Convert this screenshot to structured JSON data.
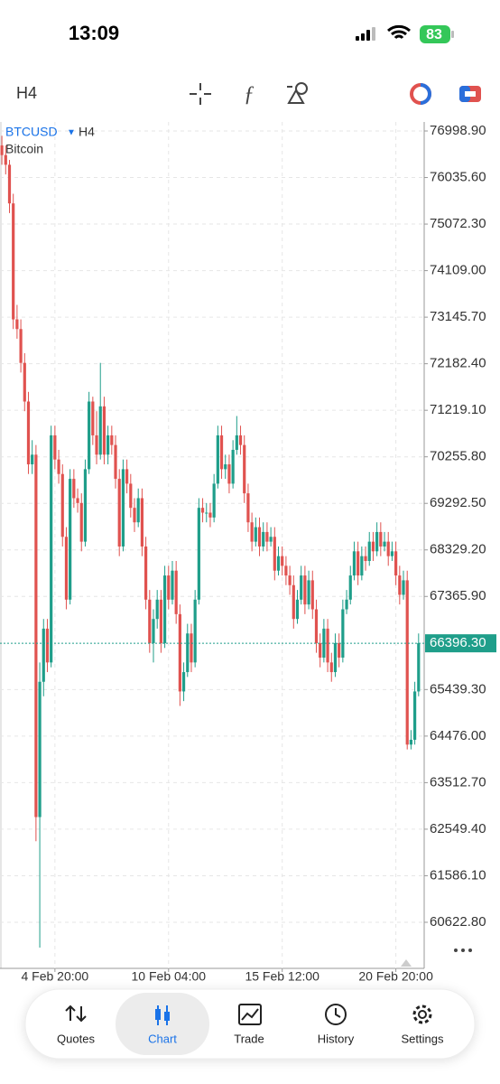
{
  "status": {
    "time": "13:09",
    "battery": "83"
  },
  "toolbar": {
    "timeframe": "H4"
  },
  "chart_data": {
    "type": "candlestick",
    "symbol": "BTCUSD",
    "timeframe": "H4",
    "description": "Bitcoin",
    "up_color": "#1f9e8a",
    "down_color": "#e0524f",
    "grid": true,
    "ylim": [
      59668.9,
      77185.9
    ],
    "yticks": [
      {
        "value": 76998.9,
        "label": "76998.90"
      },
      {
        "value": 76035.6,
        "label": "76035.60"
      },
      {
        "value": 75072.3,
        "label": "75072.30"
      },
      {
        "value": 74109,
        "label": "74109.00"
      },
      {
        "value": 73145.7,
        "label": "73145.70"
      },
      {
        "value": 72182.4,
        "label": "72182.40"
      },
      {
        "value": 71219.1,
        "label": "71219.10"
      },
      {
        "value": 70255.8,
        "label": "70255.80"
      },
      {
        "value": 69292.5,
        "label": "69292.50"
      },
      {
        "value": 68329.2,
        "label": "68329.20"
      },
      {
        "value": 67365.9,
        "label": "67365.90"
      },
      {
        "value": 65439.3,
        "label": "65439.30"
      },
      {
        "value": 64476,
        "label": "64476.00"
      },
      {
        "value": 63512.7,
        "label": "63512.70"
      },
      {
        "value": 62549.4,
        "label": "62549.40"
      },
      {
        "value": 61586.1,
        "label": "61586.10"
      },
      {
        "value": 60622.8,
        "label": "60622.80"
      }
    ],
    "xlim": [
      -0.5,
      111
    ],
    "xticks": [
      {
        "value": 14,
        "label": "4 Feb 20:00"
      },
      {
        "value": 44,
        "label": "10 Feb 04:00"
      },
      {
        "value": 74,
        "label": "15 Feb 12:00"
      },
      {
        "value": 104,
        "label": "20 Feb 20:00"
      }
    ],
    "current_price": {
      "value": 66396.3,
      "label": "66396.30"
    },
    "ohlc": [
      [
        76700,
        76900,
        76300,
        76500
      ],
      [
        76500,
        76700,
        76100,
        76300
      ],
      [
        76300,
        76400,
        75300,
        75500
      ],
      [
        75500,
        75700,
        72900,
        73100
      ],
      [
        73100,
        73400,
        72700,
        72900
      ],
      [
        72900,
        73100,
        72000,
        72200
      ],
      [
        72200,
        72400,
        71200,
        71400
      ],
      [
        71400,
        71600,
        69900,
        70100
      ],
      [
        70100,
        70600,
        69900,
        70300
      ],
      [
        70300,
        70500,
        62300,
        62800
      ],
      [
        62800,
        66000,
        60100,
        65600
      ],
      [
        65600,
        66900,
        65300,
        66700
      ],
      [
        66700,
        66900,
        65800,
        66000
      ],
      [
        66000,
        70900,
        65900,
        70700
      ],
      [
        70700,
        70900,
        70000,
        70200
      ],
      [
        70200,
        70400,
        69700,
        69900
      ],
      [
        69900,
        70100,
        68400,
        68600
      ],
      [
        68600,
        68800,
        67100,
        67300
      ],
      [
        67300,
        70000,
        67200,
        69800
      ],
      [
        69800,
        70000,
        69200,
        69400
      ],
      [
        69400,
        69600,
        69100,
        69300
      ],
      [
        69300,
        69500,
        68300,
        68500
      ],
      [
        68500,
        70200,
        68400,
        70000
      ],
      [
        70000,
        71600,
        69900,
        71400
      ],
      [
        71400,
        71500,
        70500,
        70700
      ],
      [
        70700,
        71200,
        70100,
        70300
      ],
      [
        70300,
        72200,
        70200,
        71300
      ],
      [
        71300,
        71500,
        70100,
        70300
      ],
      [
        70300,
        70900,
        70100,
        70700
      ],
      [
        70700,
        70900,
        70300,
        70500
      ],
      [
        70500,
        70700,
        69600,
        69800
      ],
      [
        69800,
        70000,
        68200,
        68400
      ],
      [
        68400,
        70200,
        68300,
        70000
      ],
      [
        70000,
        70200,
        69500,
        69700
      ],
      [
        69700,
        69900,
        69000,
        69200
      ],
      [
        69200,
        69400,
        68700,
        68900
      ],
      [
        68900,
        69600,
        68800,
        69400
      ],
      [
        69400,
        69600,
        68200,
        68400
      ],
      [
        68400,
        68600,
        67100,
        67300
      ],
      [
        67300,
        67500,
        66200,
        66400
      ],
      [
        66400,
        67100,
        66000,
        66900
      ],
      [
        66900,
        67500,
        66700,
        67300
      ],
      [
        67300,
        67500,
        66200,
        66400
      ],
      [
        66400,
        68000,
        66300,
        67800
      ],
      [
        67800,
        68000,
        67100,
        67300
      ],
      [
        67300,
        68100,
        67200,
        67900
      ],
      [
        67900,
        68100,
        66800,
        67000
      ],
      [
        67000,
        67200,
        65100,
        65400
      ],
      [
        65400,
        66000,
        65200,
        65800
      ],
      [
        65800,
        66800,
        65700,
        66600
      ],
      [
        66600,
        66800,
        65800,
        66000
      ],
      [
        66000,
        67500,
        65900,
        67300
      ],
      [
        67300,
        69400,
        67200,
        69200
      ],
      [
        69200,
        69400,
        68900,
        69100
      ],
      [
        69100,
        69300,
        68900,
        69100
      ],
      [
        69100,
        69300,
        68800,
        69000
      ],
      [
        69000,
        69900,
        68900,
        69700
      ],
      [
        69700,
        70900,
        69600,
        70700
      ],
      [
        70700,
        70900,
        69800,
        70000
      ],
      [
        70000,
        70300,
        69800,
        70100
      ],
      [
        70100,
        70300,
        69500,
        69700
      ],
      [
        69700,
        70600,
        69600,
        70400
      ],
      [
        70400,
        71100,
        70300,
        70700
      ],
      [
        70700,
        70900,
        70300,
        70500
      ],
      [
        70500,
        70700,
        69300,
        69500
      ],
      [
        69500,
        69700,
        68700,
        68900
      ],
      [
        68900,
        69100,
        68300,
        68500
      ],
      [
        68500,
        69000,
        68400,
        68800
      ],
      [
        68800,
        69000,
        68200,
        68400
      ],
      [
        68400,
        68900,
        68300,
        68700
      ],
      [
        68700,
        68900,
        68300,
        68500
      ],
      [
        68500,
        68800,
        68400,
        68600
      ],
      [
        68600,
        68800,
        67700,
        67900
      ],
      [
        67900,
        68400,
        67800,
        68200
      ],
      [
        68200,
        68400,
        67800,
        68000
      ],
      [
        68000,
        68200,
        67600,
        67800
      ],
      [
        67800,
        68000,
        67400,
        67600
      ],
      [
        67600,
        67800,
        66700,
        66900
      ],
      [
        66900,
        67500,
        66800,
        67300
      ],
      [
        67300,
        68000,
        67200,
        67800
      ],
      [
        67800,
        68000,
        67000,
        67200
      ],
      [
        67200,
        67900,
        67100,
        67700
      ],
      [
        67700,
        67900,
        66900,
        67100
      ],
      [
        67100,
        67300,
        66200,
        66400
      ],
      [
        66400,
        66600,
        65900,
        66100
      ],
      [
        66100,
        66900,
        66000,
        66700
      ],
      [
        66700,
        66900,
        65800,
        66000
      ],
      [
        66000,
        66200,
        65600,
        65800
      ],
      [
        65800,
        66600,
        65700,
        66400
      ],
      [
        66400,
        66600,
        65900,
        66100
      ],
      [
        66100,
        67300,
        66000,
        67100
      ],
      [
        67100,
        67500,
        67000,
        67300
      ],
      [
        67300,
        68000,
        67200,
        67800
      ],
      [
        67800,
        68500,
        67700,
        68300
      ],
      [
        68300,
        68500,
        67600,
        67800
      ],
      [
        67800,
        68400,
        67700,
        68200
      ],
      [
        68200,
        68400,
        67900,
        68100
      ],
      [
        68100,
        68700,
        68000,
        68500
      ],
      [
        68500,
        68700,
        68100,
        68300
      ],
      [
        68300,
        68900,
        68200,
        68700
      ],
      [
        68700,
        68900,
        68200,
        68400
      ],
      [
        68400,
        68700,
        68300,
        68500
      ],
      [
        68500,
        68700,
        68000,
        68200
      ],
      [
        68200,
        68500,
        68100,
        68300
      ],
      [
        68300,
        68500,
        67600,
        67800
      ],
      [
        67800,
        68000,
        67200,
        67400
      ],
      [
        67400,
        67900,
        67300,
        67700
      ],
      [
        67700,
        67900,
        64200,
        64300
      ],
      [
        64300,
        64600,
        64200,
        64400
      ],
      [
        64400,
        65600,
        64300,
        65400
      ],
      [
        65400,
        66600,
        65300,
        66400
      ]
    ]
  },
  "nav": {
    "items": [
      "Quotes",
      "Chart",
      "Trade",
      "History",
      "Settings"
    ],
    "active": 1
  }
}
